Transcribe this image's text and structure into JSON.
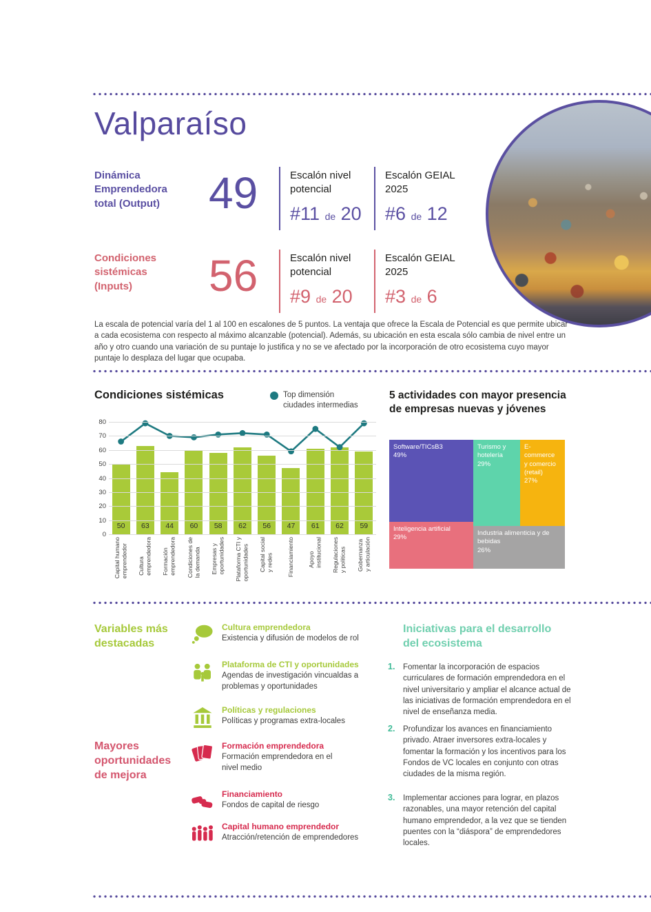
{
  "page": {
    "title": "Valparaíso"
  },
  "output_block": {
    "label": "Dinámica\nEmprendedora\ntotal (Output)",
    "value": "49",
    "cols": [
      {
        "title": "Escalón nivel\npotencial",
        "rank": "#11",
        "of_word": "de",
        "total": "20"
      },
      {
        "title": "Escalón GEIAL\n2025",
        "rank": "#6",
        "of_word": "de",
        "total": "12"
      }
    ]
  },
  "inputs_block": {
    "label": "Condiciones\nsistémicas\n(Inputs)",
    "value": "56",
    "cols": [
      {
        "title": "Escalón nivel\npotencial",
        "rank": "#9",
        "of_word": "de",
        "total": "20"
      },
      {
        "title": "Escalón GEIAL\n2025",
        "rank": "#3",
        "of_word": "de",
        "total": "6"
      }
    ]
  },
  "scale_note": "La escala de potencial varía del 1 al 100 en escalones de 5 puntos. La ventaja que ofrece la Escala de Potencial es que permite ubicar a cada ecosistema con respecto al máximo alcanzable (potencial). Además, su ubicación en esta escala sólo cambia de nivel entre un año y otro cuando una variación de su puntaje lo justifica y no se ve afectado por la incorporación de otro ecosistema cuyo mayor puntaje lo desplaza del lugar que ocupaba.",
  "chart_data": {
    "type": "bar",
    "title": "Condiciones sistémicas",
    "legend": "Top dimensión\nciudades intermedias",
    "categories": [
      "Capital humano\nemprendedor",
      "Cultura\nemprendedora",
      "Formación\nemprendedora",
      "Condiciones de\nla demanda",
      "Empresas y\noportunidades",
      "Plataforma CTI y\noportunidades",
      "Capital social\ny redes",
      "Financiamiento",
      "Apoyo\ninstitucional",
      "Regulaciones\ny políticas",
      "Gobernanza\ny articulación"
    ],
    "series": [
      {
        "name": "Condiciones sistémicas",
        "type": "bar",
        "values": [
          50,
          63,
          44,
          60,
          58,
          62,
          56,
          47,
          61,
          62,
          59
        ]
      },
      {
        "name": "Top dimensión ciudades intermedias",
        "type": "line",
        "values": [
          66,
          79,
          70,
          69,
          71,
          72,
          71,
          59,
          75,
          62,
          79
        ]
      }
    ],
    "ylim": [
      0,
      80
    ],
    "ytick_step": 10,
    "grid": true,
    "bar_color": "#a9ca39",
    "line_color": "#1e7a81",
    "legend_position": "top-right"
  },
  "treemap": {
    "title": "5 actividades con mayor presencia de empresas nuevas y jóvenes",
    "cells": [
      {
        "label": "Software/TICsB3",
        "pct": "49%",
        "color": "#5b53b5"
      },
      {
        "label": "Turismo y\nhotelería",
        "pct": "29%",
        "color": "#5ed4ab"
      },
      {
        "label": "E-commerce\ny comercio\n(retail)",
        "pct": "27%",
        "color": "#f6b40f"
      },
      {
        "label": "Inteligencia artificial",
        "pct": "29%",
        "color": "#e8707d"
      },
      {
        "label": "Industria alimenticia y de\nbebidas",
        "pct": "26%",
        "color": "#a5a4a4"
      }
    ]
  },
  "highlights": {
    "heading": "Variables más\ndestacadas",
    "accent_color": "#a6c93a",
    "items": [
      {
        "icon": "speech-bubble",
        "title": "Cultura emprendedora",
        "desc": "Existencia y difusión de modelos de rol"
      },
      {
        "icon": "collaboration",
        "title": "Plataforma de CTI y oportunidades",
        "desc": "Agendas de investigación vincualdas a\nproblemas y oportunidades"
      },
      {
        "icon": "bank",
        "title": "Políticas y regulaciones",
        "desc": "Políticas y programas extra-locales"
      }
    ]
  },
  "improvements": {
    "heading": "Mayores\noportunidades\nde mejora",
    "accent_color": "#d62b4e",
    "items": [
      {
        "icon": "cards",
        "title": "Formación emprendedora",
        "desc": "Formación emprendedora en el\nnivel medio"
      },
      {
        "icon": "handshake",
        "title": "Financiamiento",
        "desc": "Fondos de capital de riesgo"
      },
      {
        "icon": "people-group",
        "title": "Capital humano emprendedor",
        "desc": "Atracción/retención de emprendedores"
      }
    ]
  },
  "initiatives": {
    "heading": "Iniciativas para el desarrollo\ndel ecosistema",
    "accent_color": "#6fcfae",
    "items": [
      {
        "num": "1.",
        "text": "Fomentar la incorporación de espacios curriculares de formación emprendedora en el nivel universitario y ampliar el alcance actual de las iniciativas de formación emprendedora en el nivel de enseñanza media."
      },
      {
        "num": "2.",
        "text": "Profundizar los avances en financiamiento privado. Atraer inversores extra-locales y fomentar la formación y los incentivos para los Fondos de VC locales en conjunto con otras ciudades de la misma región."
      },
      {
        "num": "3.",
        "text": "Implementar acciones para lograr, en plazos razonables, una mayor retención del capital humano emprendedor, a la vez que se tienden puentes con la “diáspora” de emprendedores locales."
      }
    ]
  }
}
